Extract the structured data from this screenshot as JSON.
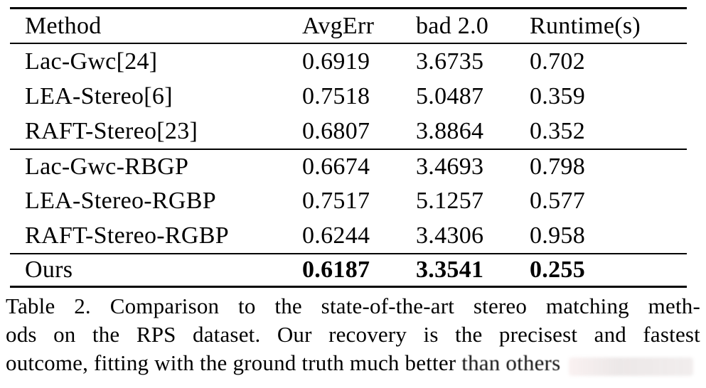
{
  "table": {
    "headers": [
      "Method",
      "AvgErr",
      "bad 2.0",
      "Runtime(s)"
    ],
    "rows": [
      {
        "method": "Lac-Gwc[24]",
        "avgerr": "0.6919",
        "bad": "3.6735",
        "runtime": "0.702"
      },
      {
        "method": "LEA-Stereo[6]",
        "avgerr": "0.7518",
        "bad": "5.0487",
        "runtime": "0.359"
      },
      {
        "method": "RAFT-Stereo[23]",
        "avgerr": "0.6807",
        "bad": "3.8864",
        "runtime": "0.352"
      },
      {
        "method": "Lac-Gwc-RBGP",
        "avgerr": "0.6674",
        "bad": "3.4693",
        "runtime": "0.798"
      },
      {
        "method": "LEA-Stereo-RGBP",
        "avgerr": "0.7517",
        "bad": "5.1257",
        "runtime": "0.577"
      },
      {
        "method": "RAFT-Stereo-RGBP",
        "avgerr": "0.6244",
        "bad": "3.4306",
        "runtime": "0.958"
      },
      {
        "method": "Ours",
        "avgerr": "0.6187",
        "bad": "3.3541",
        "runtime": "0.255"
      }
    ]
  },
  "caption": {
    "line1": "Table 2. Comparison to the state-of-the-art stereo matching meth-",
    "line2": "ods on the RPS dataset.  Our recovery is the precisest and fastest",
    "line3_start": "outcome, fitting with the ground truth much better ",
    "line3_end": "than others"
  },
  "colors": {
    "text": "#000000",
    "background": "#ffffff",
    "rule": "#000000"
  }
}
